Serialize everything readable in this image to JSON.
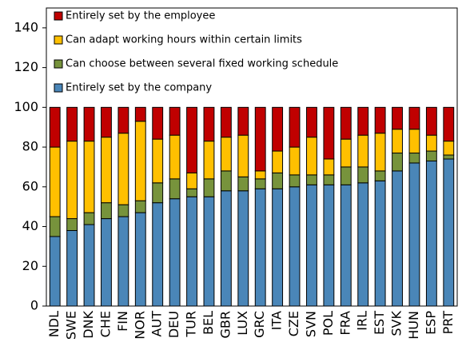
{
  "chart_data": {
    "type": "stacked_bar",
    "categories": [
      "NDL",
      "SWE",
      "DNK",
      "CHE",
      "FIN",
      "NOR",
      "AUT",
      "DEU",
      "TUR",
      "BEL",
      "GBR",
      "LUX",
      "GRC",
      "ITA",
      "CZE",
      "SVN",
      "POL",
      "FRA",
      "IRL",
      "EST",
      "SVK",
      "HUN",
      "ESP",
      "PRT"
    ],
    "series": [
      {
        "name": "Entirely set by the company",
        "color": "#4a86b8",
        "values": [
          35,
          38,
          41,
          44,
          45,
          47,
          52,
          54,
          55,
          55,
          58,
          58,
          59,
          59,
          60,
          61,
          61,
          61,
          62,
          63,
          68,
          72,
          73,
          74
        ]
      },
      {
        "name": "Can choose between several fixed working schedule",
        "color": "#77933c",
        "values": [
          10,
          6,
          6,
          8,
          6,
          6,
          10,
          10,
          4,
          9,
          10,
          7,
          5,
          8,
          6,
          5,
          5,
          9,
          8,
          5,
          9,
          5,
          5,
          2
        ]
      },
      {
        "name": "Can adapt working hours within certain limits",
        "color": "#ffc000",
        "values": [
          35,
          39,
          36,
          33,
          36,
          40,
          22,
          22,
          8,
          19,
          17,
          21,
          4,
          11,
          14,
          19,
          8,
          14,
          16,
          19,
          12,
          12,
          8,
          7
        ]
      },
      {
        "name": "Entirely set by the employee",
        "color": "#c00000",
        "values": [
          20,
          17,
          17,
          15,
          13,
          7,
          16,
          14,
          33,
          17,
          15,
          14,
          32,
          22,
          20,
          15,
          26,
          16,
          14,
          13,
          11,
          11,
          14,
          17
        ]
      }
    ],
    "ylim": [
      0,
      150
    ],
    "yticks": [
      0,
      20,
      40,
      60,
      80,
      100,
      120,
      140
    ]
  }
}
